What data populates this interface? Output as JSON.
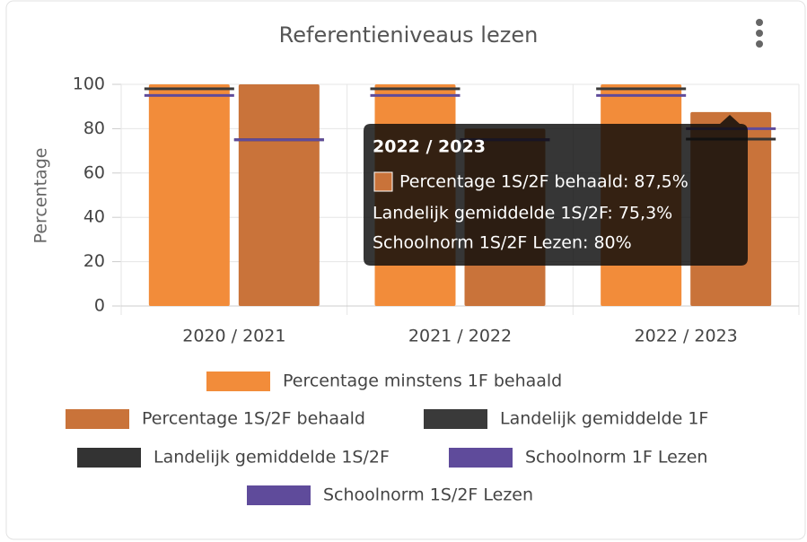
{
  "chart_data": {
    "type": "bar",
    "title": "Referentieniveaus lezen",
    "y_label": "Percentage",
    "categories": [
      "2020 / 2021",
      "2021 / 2022",
      "2022 / 2023"
    ],
    "series": [
      {
        "name": "Percentage minstens 1F behaald",
        "type": "bar",
        "slot": 0,
        "color": "#f28c3a",
        "values": [
          100,
          100,
          100
        ]
      },
      {
        "name": "Percentage 1S/2F behaald",
        "type": "bar",
        "slot": 1,
        "color": "#c9733a",
        "values": [
          100,
          80,
          87.5
        ]
      },
      {
        "name": "Landelijk gemiddelde 1F",
        "type": "marker",
        "slot": 0,
        "color": "#3a3a3a",
        "values": [
          98,
          98,
          98
        ]
      },
      {
        "name": "Landelijk gemiddelde 1S/2F",
        "type": "marker",
        "slot": 1,
        "color": "#333333",
        "values": [
          75,
          75,
          75.3
        ]
      },
      {
        "name": "Schoolnorm 1F Lezen",
        "type": "marker",
        "slot": 0,
        "color": "#5f4b9b",
        "values": [
          95,
          95,
          95
        ]
      },
      {
        "name": "Schoolnorm 1S/2F Lezen",
        "type": "marker",
        "slot": 1,
        "color": "#5f4b9b",
        "values": [
          75,
          75,
          80
        ]
      }
    ],
    "ylim": [
      0,
      100
    ],
    "yticks": [
      0,
      20,
      40,
      60,
      80,
      100
    ],
    "grid": true,
    "tooltip": {
      "title": "2022 / 2023",
      "lines": [
        "Percentage 1S/2F behaald: 87,5%",
        "Landelijk gemiddelde 1S/2F: 75,3%",
        "Schoolnorm 1S/2F Lezen: 80%"
      ]
    }
  }
}
